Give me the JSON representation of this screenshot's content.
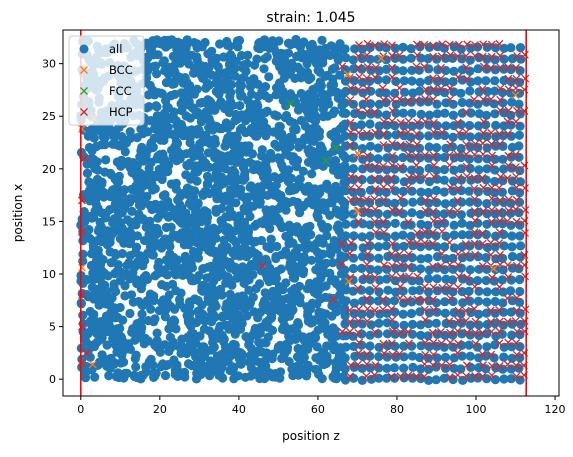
{
  "chart_data": {
    "type": "scatter",
    "title": "strain: 1.045",
    "xlabel": "position z",
    "ylabel": "position x",
    "xlim": [
      -4.5,
      121
    ],
    "ylim": [
      -1.6,
      33.2
    ],
    "xticks": [
      0,
      20,
      40,
      60,
      80,
      100,
      120
    ],
    "yticks": [
      0,
      5,
      10,
      15,
      20,
      25,
      30
    ],
    "grid": false,
    "legend_position": "top-left",
    "vertical_lines": [
      0,
      112.7
    ],
    "series": [
      {
        "name": "all",
        "marker": "o",
        "color": "#1f77b4",
        "region": {
          "x": [
            0,
            113
          ],
          "y": [
            0,
            32.3
          ]
        },
        "dense_region": {
          "x": [
            0,
            67
          ]
        },
        "lattice_region": {
          "x": [
            67,
            113
          ],
          "column_spacing": 2.1,
          "row_spacing": 1.05
        }
      },
      {
        "name": "BCC",
        "marker": "x",
        "color": "#ff7f0e",
        "points": [
          [
            3.2,
            24.8
          ],
          [
            0.3,
            23.8
          ],
          [
            67.5,
            29.0
          ],
          [
            70.0,
            21.5
          ],
          [
            70.0,
            16.0
          ],
          [
            67.8,
            9.3
          ],
          [
            3.0,
            1.4
          ],
          [
            76.0,
            30.5
          ],
          [
            110.0,
            27.0
          ],
          [
            104.5,
            10.5
          ],
          [
            0.3,
            10.6
          ]
        ]
      },
      {
        "name": "FCC",
        "marker": "x",
        "color": "#2ca02c",
        "points": [
          [
            53.0,
            26.2
          ],
          [
            62.0,
            20.8
          ],
          [
            64.5,
            22.0
          ]
        ]
      },
      {
        "name": "HCP",
        "marker": "x",
        "color": "#d62728",
        "points": [
          [
            46.0,
            10.8
          ],
          [
            0.3,
            17.0
          ],
          [
            0.3,
            14.0
          ],
          [
            0.3,
            8.0
          ],
          [
            0.3,
            5.0
          ],
          [
            0.3,
            1.5
          ],
          [
            1.5,
            2.5
          ],
          [
            1.2,
            27.0
          ],
          [
            1.0,
            21.0
          ]
        ],
        "lattice_region": {
          "x": [
            64,
            113
          ],
          "column_spacing": 2.1,
          "row_spacing": 1.05,
          "coverage": 0.6
        }
      }
    ]
  }
}
